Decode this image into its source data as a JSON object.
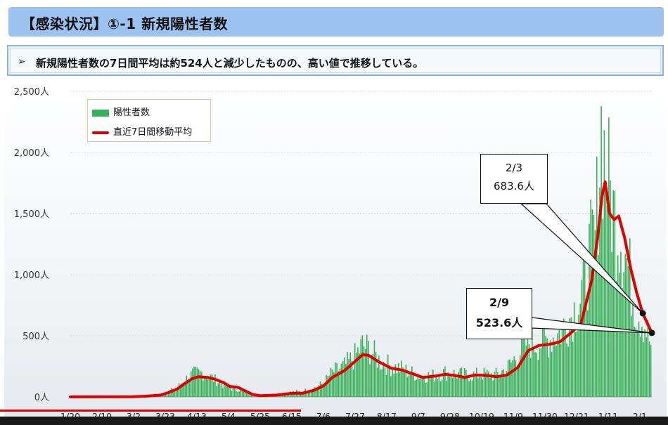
{
  "title": "【感染状況】①-1 新規陽性者数",
  "summary": {
    "bullet": "➢",
    "text": "新規陽性者数の7日間平均は約524人と減少したものの、高い値で推移している。"
  },
  "legend": {
    "bars": "陽性者数",
    "line": "直近7日間移動平均"
  },
  "callouts": {
    "a": {
      "date": "2/3",
      "value": "683.6人"
    },
    "b": {
      "date": "2/9",
      "value": "523.6人"
    }
  },
  "colors": {
    "bar": "#39b05a",
    "line": "#e00000",
    "title_bg": "#9cc3ef"
  },
  "video": {
    "progress_fraction": 0.45
  },
  "chart_data": {
    "type": "bar",
    "overlay_type": "line",
    "x_start": "2020-01-20",
    "x_end": "2021-02-09",
    "x_ticks": [
      "1/20",
      "2/10",
      "3/2",
      "3/23",
      "4/13",
      "5/4",
      "5/25",
      "6/15",
      "7/6",
      "7/27",
      "8/17",
      "9/7",
      "9/28",
      "10/19",
      "11/9",
      "11/30",
      "12/21",
      "1/11",
      "2/1"
    ],
    "y_ticks": [
      "0人",
      "500人",
      "1,000人",
      "1,500人",
      "2,000人",
      "2,500人"
    ],
    "ylim": [
      0,
      2500
    ],
    "grid": true,
    "legend_position": "top-left",
    "series": [
      {
        "name": "陽性者数",
        "kind": "bar",
        "points": [
          [
            "2020-01-20",
            0
          ],
          [
            "2020-03-01",
            3
          ],
          [
            "2020-03-10",
            8
          ],
          [
            "2020-03-20",
            20
          ],
          [
            "2020-03-25",
            45
          ],
          [
            "2020-03-31",
            80
          ],
          [
            "2020-04-05",
            140
          ],
          [
            "2020-04-10",
            185
          ],
          [
            "2020-04-17",
            200
          ],
          [
            "2020-04-25",
            140
          ],
          [
            "2020-05-01",
            95
          ],
          [
            "2020-05-08",
            60
          ],
          [
            "2020-05-12",
            60
          ],
          [
            "2020-05-18",
            25
          ],
          [
            "2020-05-25",
            12
          ],
          [
            "2020-06-05",
            22
          ],
          [
            "2020-06-15",
            40
          ],
          [
            "2020-06-22",
            45
          ],
          [
            "2020-06-30",
            75
          ],
          [
            "2020-07-06",
            110
          ],
          [
            "2020-07-12",
            200
          ],
          [
            "2020-07-20",
            250
          ],
          [
            "2020-07-27",
            330
          ],
          [
            "2020-08-01",
            420
          ],
          [
            "2020-08-06",
            390
          ],
          [
            "2020-08-12",
            300
          ],
          [
            "2020-08-20",
            250
          ],
          [
            "2020-08-27",
            230
          ],
          [
            "2020-09-02",
            200
          ],
          [
            "2020-09-10",
            170
          ],
          [
            "2020-09-18",
            175
          ],
          [
            "2020-09-25",
            200
          ],
          [
            "2020-10-01",
            190
          ],
          [
            "2020-10-08",
            180
          ],
          [
            "2020-10-15",
            180
          ],
          [
            "2020-10-22",
            185
          ],
          [
            "2020-10-29",
            180
          ],
          [
            "2020-11-05",
            230
          ],
          [
            "2020-11-12",
            340
          ],
          [
            "2020-11-19",
            450
          ],
          [
            "2020-11-26",
            440
          ],
          [
            "2020-12-03",
            470
          ],
          [
            "2020-12-10",
            520
          ],
          [
            "2020-12-17",
            650
          ],
          [
            "2020-12-24",
            800
          ],
          [
            "2020-12-31",
            1200
          ],
          [
            "2021-01-03",
            1300
          ],
          [
            "2021-01-07",
            2200
          ],
          [
            "2021-01-10",
            1900
          ],
          [
            "2021-01-15",
            1500
          ],
          [
            "2021-01-20",
            1350
          ],
          [
            "2021-01-25",
            1050
          ],
          [
            "2021-01-30",
            750
          ],
          [
            "2021-02-03",
            650
          ],
          [
            "2021-02-06",
            560
          ],
          [
            "2021-02-09",
            420
          ]
        ]
      },
      {
        "name": "直近7日間移動平均",
        "kind": "line",
        "points": [
          [
            "2020-01-20",
            0
          ],
          [
            "2020-03-01",
            2
          ],
          [
            "2020-03-10",
            6
          ],
          [
            "2020-03-20",
            15
          ],
          [
            "2020-03-25",
            35
          ],
          [
            "2020-03-31",
            65
          ],
          [
            "2020-04-05",
            110
          ],
          [
            "2020-04-10",
            150
          ],
          [
            "2020-04-14",
            165
          ],
          [
            "2020-04-20",
            160
          ],
          [
            "2020-04-25",
            145
          ],
          [
            "2020-05-01",
            115
          ],
          [
            "2020-05-05",
            85
          ],
          [
            "2020-05-10",
            80
          ],
          [
            "2020-05-15",
            50
          ],
          [
            "2020-05-20",
            20
          ],
          [
            "2020-05-25",
            10
          ],
          [
            "2020-06-05",
            15
          ],
          [
            "2020-06-15",
            30
          ],
          [
            "2020-06-22",
            30
          ],
          [
            "2020-06-30",
            55
          ],
          [
            "2020-07-06",
            90
          ],
          [
            "2020-07-12",
            160
          ],
          [
            "2020-07-20",
            215
          ],
          [
            "2020-07-27",
            290
          ],
          [
            "2020-08-01",
            345
          ],
          [
            "2020-08-05",
            340
          ],
          [
            "2020-08-12",
            285
          ],
          [
            "2020-08-20",
            235
          ],
          [
            "2020-08-27",
            220
          ],
          [
            "2020-09-03",
            190
          ],
          [
            "2020-09-10",
            160
          ],
          [
            "2020-09-18",
            170
          ],
          [
            "2020-09-25",
            185
          ],
          [
            "2020-10-01",
            175
          ],
          [
            "2020-10-08",
            160
          ],
          [
            "2020-10-15",
            180
          ],
          [
            "2020-10-22",
            175
          ],
          [
            "2020-10-29",
            165
          ],
          [
            "2020-11-05",
            180
          ],
          [
            "2020-11-12",
            240
          ],
          [
            "2020-11-19",
            380
          ],
          [
            "2020-11-26",
            420
          ],
          [
            "2020-12-03",
            430
          ],
          [
            "2020-12-10",
            450
          ],
          [
            "2020-12-17",
            520
          ],
          [
            "2020-12-24",
            600
          ],
          [
            "2020-12-31",
            950
          ],
          [
            "2021-01-04",
            1300
          ],
          [
            "2021-01-07",
            1650
          ],
          [
            "2021-01-09",
            1760
          ],
          [
            "2021-01-12",
            1500
          ],
          [
            "2021-01-15",
            1450
          ],
          [
            "2021-01-18",
            1480
          ],
          [
            "2021-01-22",
            1300
          ],
          [
            "2021-01-26",
            1050
          ],
          [
            "2021-01-30",
            850
          ],
          [
            "2021-02-03",
            683.6
          ],
          [
            "2021-02-09",
            523.6
          ]
        ]
      }
    ],
    "markers": [
      {
        "date": "2021-02-03",
        "value": 683.6
      },
      {
        "date": "2021-02-09",
        "value": 523.6
      }
    ]
  }
}
